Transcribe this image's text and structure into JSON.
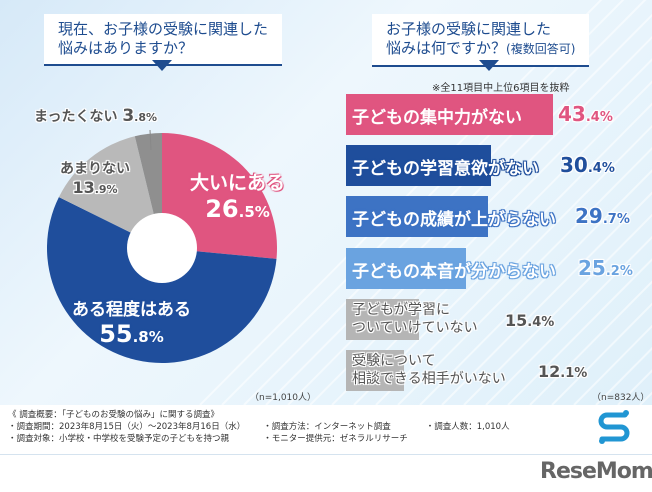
{
  "left": {
    "question": [
      "現在、お子様の受験に関連した",
      "悩みはありますか？"
    ],
    "n": "（n=1,010人）"
  },
  "right": {
    "question": [
      "お子様の受験に関連した",
      "悩みは何ですか？"
    ],
    "question_note": "(複数回答可)",
    "note": "※全11項目中上位6項目を抜粋",
    "n": "（n=832人）"
  },
  "chart_data": [
    {
      "type": "pie",
      "donut": true,
      "categories": [
        "大いにある",
        "ある程度はある",
        "あまりない",
        "まったくない"
      ],
      "values": [
        26.5,
        55.8,
        13.9,
        3.8
      ],
      "unit": "%",
      "colors": [
        "#e05580",
        "#1f4e9c",
        "#b9b9b9",
        "#8f8f8f"
      ]
    },
    {
      "type": "bar",
      "orientation": "horizontal",
      "categories": [
        "子どもの集中力がない",
        "子どもの学習意欲がない",
        "子どもの成績が上がらない",
        "子どもの本音が分からない",
        "子どもが学習についていけていない",
        "受験について相談できる相手がいない"
      ],
      "values": [
        43.4,
        30.4,
        29.7,
        25.2,
        15.4,
        12.1
      ],
      "unit": "%",
      "colors": [
        "#e05580",
        "#1f4e9c",
        "#3d73c4",
        "#6aa3e0",
        "#b5b5b5",
        "#b5b5b5"
      ]
    }
  ],
  "pie_labels": [
    {
      "l1": "大いにある",
      "int": "26",
      "dec": ".5%"
    },
    {
      "l1": "ある程度はある",
      "int": "55",
      "dec": ".8%"
    },
    {
      "l1": "あまりない",
      "int": "13",
      "dec": ".9%"
    },
    {
      "l1": "まったくない",
      "int": "3",
      "dec": ".8%"
    }
  ],
  "bar_labels": [
    {
      "l1": "子どもの集中力がない",
      "int": "43",
      "dec": ".4%"
    },
    {
      "l1": "子どもの学習意欲がない",
      "int": "30",
      "dec": ".4%"
    },
    {
      "l1": "子どもの成績が上がらない",
      "int": "29",
      "dec": ".7%"
    },
    {
      "l1": "子どもの本音が分からない",
      "int": "25",
      "dec": ".2%"
    },
    {
      "l1": "子どもが学習に",
      "l2": "ついていけていない",
      "int": "15",
      "dec": ".4%"
    },
    {
      "l1": "受験について",
      "l2": "相談できる相手がいない",
      "int": "12",
      "dec": ".1%"
    }
  ],
  "footer": {
    "title": "《 調査概要：「子どものお受験の悩み」に関する調査》",
    "period": "・調査期間：2023年8月15日（火）～2023年8月16日（水）",
    "target": "・調査対象：小学校・中学校を受験予定の子どもを持つ親",
    "method": "・調査方法：インターネット調査",
    "provider": "・モニター提供元：ゼネラルリサーチ",
    "count": "・調査人数：1,010人",
    "logo": "ReseMom"
  }
}
